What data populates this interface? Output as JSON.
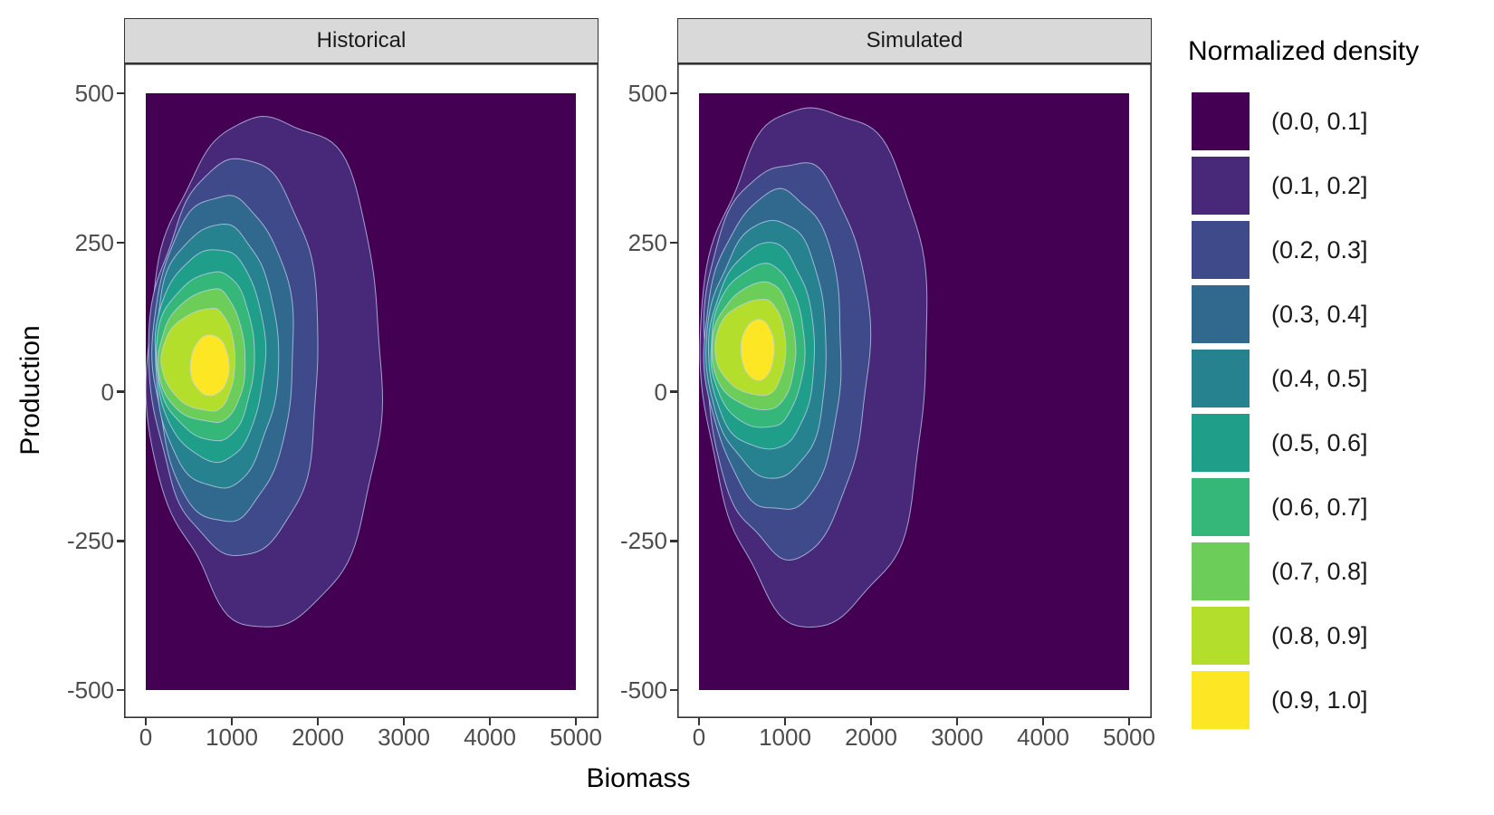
{
  "chart_data": {
    "type": "filled-contour-density",
    "xlabel": "Biomass",
    "ylabel": "Production",
    "x_range": [
      0,
      5000
    ],
    "y_range": [
      -500,
      500
    ],
    "x_ticks": [
      0,
      1000,
      2000,
      3000,
      4000,
      5000
    ],
    "y_ticks": [
      500,
      250,
      0,
      -250,
      -500
    ],
    "grid": "off",
    "legend_position": "right",
    "legend": {
      "title": "Normalized density",
      "entries": [
        {
          "label": "(0.0, 0.1]",
          "color": "#440154"
        },
        {
          "label": "(0.1, 0.2]",
          "color": "#482878"
        },
        {
          "label": "(0.2, 0.3]",
          "color": "#3E4A89"
        },
        {
          "label": "(0.3, 0.4]",
          "color": "#31688E"
        },
        {
          "label": "(0.4, 0.5]",
          "color": "#26828E"
        },
        {
          "label": "(0.5, 0.6]",
          "color": "#1F9E89"
        },
        {
          "label": "(0.6, 0.7]",
          "color": "#35B779"
        },
        {
          "label": "(0.7, 0.8]",
          "color": "#6DCD59"
        },
        {
          "label": "(0.8, 0.9]",
          "color": "#B4DE2C"
        },
        {
          "label": "(0.9, 1.0]",
          "color": "#FDE725"
        }
      ]
    },
    "style": {
      "panel_bg": "#FFFFFF",
      "strip_bg": "#D9D9D9",
      "border_color": "#333333",
      "tick_color": "#333333",
      "tick_label_color": "#4D4D4D",
      "band_edge_color": "#C3D0EE"
    },
    "facets": [
      {
        "name": "Historical",
        "peak": {
          "x": 745,
          "y": 43
        },
        "bands": [
          {
            "level": "(0.1, 0.2]",
            "color": "#482878",
            "cx": 1350,
            "cy": 40,
            "rxl": 1300,
            "rxr": 1430,
            "ryu": 425,
            "ryd": 430,
            "jit": 0.055,
            "seed": 7
          },
          {
            "level": "(0.2, 0.3]",
            "color": "#3E4A89",
            "cx": 1050,
            "cy": 55,
            "rxl": 980,
            "rxr": 985,
            "ryu": 335,
            "ryd": 330,
            "jit": 0.045,
            "seed": 11
          },
          {
            "level": "(0.3, 0.4]",
            "color": "#31688E",
            "cx": 950,
            "cy": 55,
            "rxl": 870,
            "rxr": 762,
            "ryu": 276,
            "ryd": 270,
            "jit": 0.04,
            "seed": 17
          },
          {
            "level": "(0.4, 0.5]",
            "color": "#26828E",
            "cx": 890,
            "cy": 55,
            "rxl": 795,
            "rxr": 640,
            "ryu": 226,
            "ryd": 216,
            "jit": 0.035,
            "seed": 23
          },
          {
            "level": "(0.5, 0.6]",
            "color": "#1F9E89",
            "cx": 850,
            "cy": 55,
            "rxl": 745,
            "rxr": 532,
            "ryu": 186,
            "ryd": 170,
            "jit": 0.03,
            "seed": 31
          },
          {
            "level": "(0.6, 0.7]",
            "color": "#35B779",
            "cx": 820,
            "cy": 52,
            "rxl": 700,
            "rxr": 442,
            "ryu": 150,
            "ryd": 133,
            "jit": 0.027,
            "seed": 37
          },
          {
            "level": "(0.7, 0.8]",
            "color": "#6DCD59",
            "cx": 800,
            "cy": 50,
            "rxl": 660,
            "rxr": 356,
            "ryu": 120,
            "ryd": 103,
            "jit": 0.024,
            "seed": 41
          },
          {
            "level": "(0.8, 0.9]",
            "color": "#B4DE2C",
            "cx": 780,
            "cy": 48,
            "rxl": 600,
            "rxr": 256,
            "ryu": 92,
            "ryd": 80,
            "jit": 0.02,
            "seed": 47
          },
          {
            "level": "(0.9, 1.0]",
            "color": "#FDE725",
            "cx": 745,
            "cy": 43,
            "rxl": 226,
            "rxr": 226,
            "ryu": 52,
            "ryd": 50,
            "jit": 0.02,
            "seed": 53
          }
        ]
      },
      {
        "name": "Simulated",
        "peak": {
          "x": 685,
          "y": 70
        },
        "bands": [
          {
            "level": "(0.1, 0.2]",
            "color": "#482878",
            "cx": 1300,
            "cy": 55,
            "rxl": 1240,
            "rxr": 1390,
            "ryu": 430,
            "ryd": 440,
            "jit": 0.055,
            "seed": 61
          },
          {
            "level": "(0.2, 0.3]",
            "color": "#3E4A89",
            "cx": 1020,
            "cy": 65,
            "rxl": 950,
            "rxr": 962,
            "ryu": 325,
            "ryd": 335,
            "jit": 0.045,
            "seed": 67
          },
          {
            "level": "(0.3, 0.4]",
            "color": "#31688E",
            "cx": 930,
            "cy": 70,
            "rxl": 845,
            "rxr": 742,
            "ryu": 266,
            "ryd": 270,
            "jit": 0.04,
            "seed": 71
          },
          {
            "level": "(0.4, 0.5]",
            "color": "#26828E",
            "cx": 870,
            "cy": 70,
            "rxl": 770,
            "rxr": 622,
            "ryu": 216,
            "ryd": 216,
            "jit": 0.035,
            "seed": 73
          },
          {
            "level": "(0.5, 0.6]",
            "color": "#1F9E89",
            "cx": 830,
            "cy": 70,
            "rxl": 720,
            "rxr": 512,
            "ryu": 176,
            "ryd": 170,
            "jit": 0.03,
            "seed": 79
          },
          {
            "level": "(0.6, 0.7]",
            "color": "#35B779",
            "cx": 800,
            "cy": 70,
            "rxl": 675,
            "rxr": 422,
            "ryu": 142,
            "ryd": 132,
            "jit": 0.027,
            "seed": 83
          },
          {
            "level": "(0.7, 0.8]",
            "color": "#6DCD59",
            "cx": 780,
            "cy": 70,
            "rxl": 635,
            "rxr": 342,
            "ryu": 112,
            "ryd": 102,
            "jit": 0.024,
            "seed": 89
          },
          {
            "level": "(0.8, 0.9]",
            "color": "#B4DE2C",
            "cx": 760,
            "cy": 70,
            "rxl": 580,
            "rxr": 246,
            "ryu": 85,
            "ryd": 76,
            "jit": 0.02,
            "seed": 97
          },
          {
            "level": "(0.9, 1.0]",
            "color": "#FDE725",
            "cx": 685,
            "cy": 70,
            "rxl": 196,
            "rxr": 190,
            "ryu": 51,
            "ryd": 51,
            "jit": 0.02,
            "seed": 101
          }
        ]
      }
    ]
  }
}
